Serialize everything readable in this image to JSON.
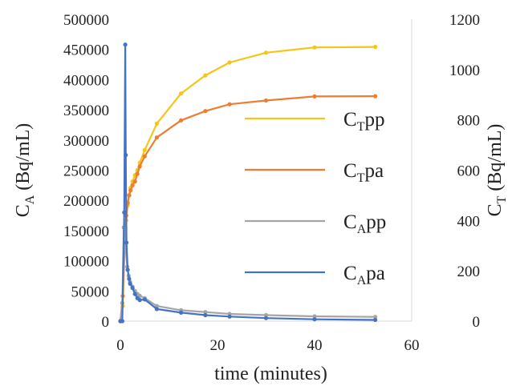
{
  "chart_data": {
    "type": "line",
    "xlabel": "time (minutes)",
    "ylabel_left": {
      "main": "C",
      "sub": "A",
      "tail": " (Bq/mL)"
    },
    "ylabel_right": {
      "main": "C",
      "sub": "T",
      "tail": " (Bq/mL)"
    },
    "xlim": [
      0,
      60
    ],
    "ylim_left": [
      0,
      500000
    ],
    "ylim_right": [
      0,
      1200
    ],
    "xticks": [
      "0",
      "20",
      "40",
      "60"
    ],
    "yticks_left": [
      "0",
      "50000",
      "100000",
      "150000",
      "200000",
      "250000",
      "300000",
      "350000",
      "400000",
      "450000",
      "500000"
    ],
    "yticks_right": [
      "0",
      "200",
      "400",
      "600",
      "800",
      "1000",
      "1200"
    ],
    "grid": false,
    "legend_position": "center-right",
    "series": [
      {
        "name": "CTpp",
        "legend": {
          "main": "C",
          "sub": "T",
          "tail": "pp"
        },
        "axis": "right",
        "color": "#F5C518",
        "x": [
          0.0,
          0.5,
          0.9,
          1.2,
          1.5,
          1.8,
          2.1,
          2.5,
          3.0,
          3.5,
          4.0,
          5.0,
          7.5,
          12.5,
          17.5,
          22.5,
          30,
          40,
          52.5
        ],
        "y": [
          0,
          60,
          290,
          400,
          460,
          500,
          530,
          555,
          580,
          600,
          630,
          680,
          785,
          905,
          977,
          1028,
          1067,
          1088,
          1090
        ]
      },
      {
        "name": "CTpa",
        "legend": {
          "main": "C",
          "sub": "T",
          "tail": "pa"
        },
        "axis": "right",
        "color": "#ED7D31",
        "x": [
          0.0,
          0.5,
          0.9,
          1.2,
          1.5,
          1.8,
          2.1,
          2.5,
          3.0,
          3.5,
          4.0,
          5.0,
          7.5,
          12.5,
          17.5,
          22.5,
          30,
          40,
          52.5
        ],
        "y": [
          0,
          100,
          330,
          420,
          470,
          500,
          520,
          540,
          555,
          585,
          615,
          655,
          730,
          798,
          835,
          862,
          877,
          893,
          894
        ]
      },
      {
        "name": "CApp",
        "legend": {
          "main": "C",
          "sub": "A",
          "tail": "pp"
        },
        "axis": "left",
        "color": "#A5A5A5",
        "x": [
          0.0,
          0.4,
          0.7,
          0.9,
          1.1,
          1.4,
          1.7,
          2.0,
          2.5,
          3.0,
          3.5,
          4.0,
          5.0,
          7.5,
          12.5,
          17.5,
          22.5,
          30,
          40,
          52.5
        ],
        "y": [
          0,
          30000,
          155000,
          150000,
          120000,
          90000,
          75000,
          65000,
          57000,
          50000,
          45000,
          42000,
          38000,
          25000,
          18000,
          15000,
          12000,
          10000,
          8000,
          7000
        ]
      },
      {
        "name": "CApa",
        "legend": {
          "main": "C",
          "sub": "A",
          "tail": "pa"
        },
        "axis": "left",
        "color": "#4472C4",
        "x": [
          0.0,
          0.4,
          0.8,
          1.0,
          1.1,
          1.25,
          1.5,
          1.8,
          2.0,
          2.5,
          3.0,
          3.5,
          4.0,
          5.0,
          7.5,
          12.5,
          17.5,
          22.5,
          30,
          40,
          52.5
        ],
        "y": [
          0,
          0,
          180000,
          458000,
          275000,
          130000,
          85000,
          70000,
          62000,
          55000,
          45000,
          38000,
          35000,
          36000,
          20000,
          14000,
          10000,
          7500,
          5000,
          3000,
          2000
        ]
      }
    ]
  }
}
